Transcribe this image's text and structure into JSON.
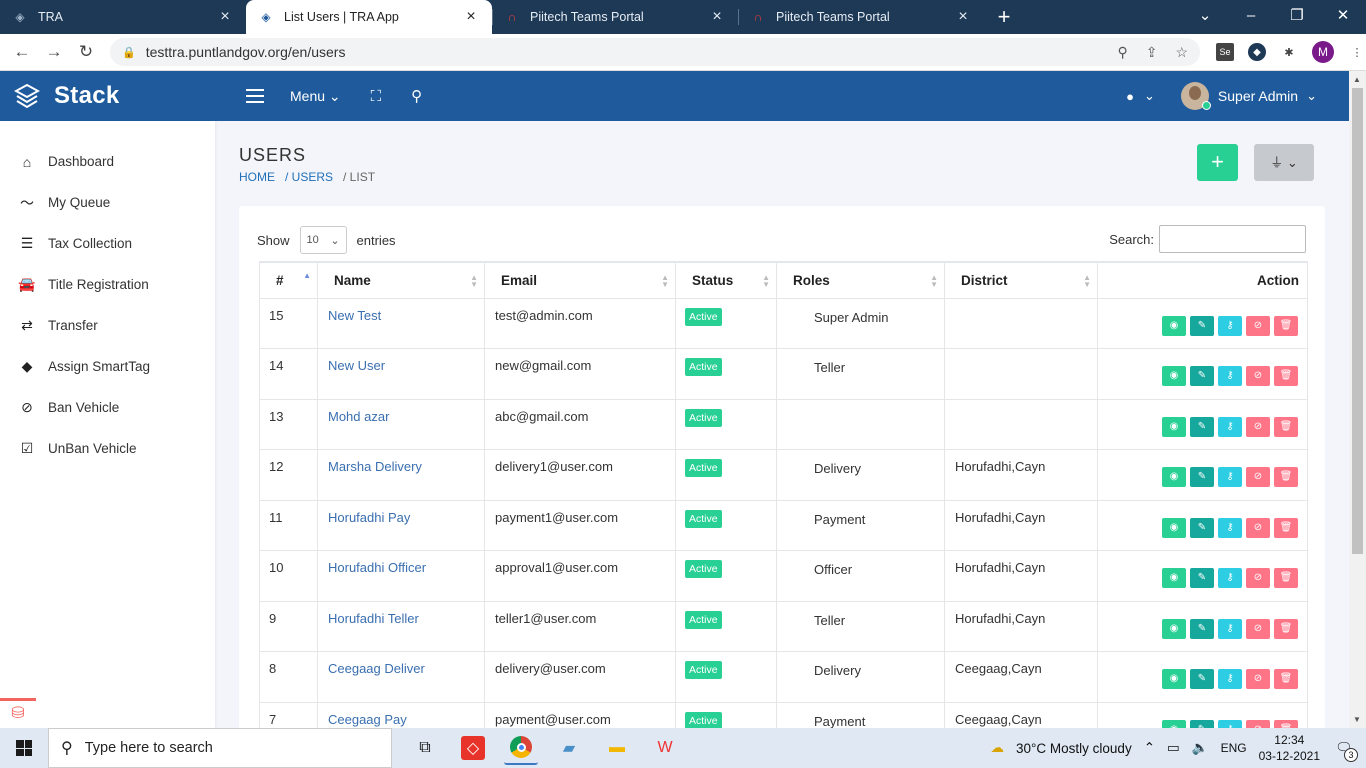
{
  "browser": {
    "tabs": [
      {
        "title": "TRA",
        "active": false,
        "icon": "layers-icon"
      },
      {
        "title": "List Users | TRA App",
        "active": true,
        "icon": "layers-icon"
      },
      {
        "title": "Piitech Teams Portal",
        "active": false,
        "icon": "headset-icon"
      },
      {
        "title": "Piitech Teams Portal",
        "active": false,
        "icon": "headset-icon"
      }
    ],
    "url": "testtra.puntlandgov.org/en/users",
    "profile_initial": "M",
    "ext_se": "Se"
  },
  "header": {
    "brand": "Stack",
    "menu_label": "Menu",
    "user_name": "Super Admin"
  },
  "sidebar": {
    "items": [
      {
        "label": "Dashboard",
        "icon": "home-icon"
      },
      {
        "label": "My Queue",
        "icon": "trend-icon"
      },
      {
        "label": "Tax Collection",
        "icon": "list-icon"
      },
      {
        "label": "Title Registration",
        "icon": "car-icon"
      },
      {
        "label": "Transfer",
        "icon": "exchange-icon"
      },
      {
        "label": "Assign SmartTag",
        "icon": "tags-icon"
      },
      {
        "label": "Ban Vehicle",
        "icon": "ban-icon"
      },
      {
        "label": "UnBan Vehicle",
        "icon": "check-square-icon"
      }
    ]
  },
  "page": {
    "title": "USERS",
    "breadcrumb": [
      "HOME",
      "/ USERS",
      "/ LIST"
    ]
  },
  "table": {
    "show_label": "Show",
    "page_size": "10",
    "entries_label": "entries",
    "search_label": "Search:",
    "columns": [
      "#",
      "Name",
      "Email",
      "Status",
      "Roles",
      "District",
      "Action"
    ],
    "rows": [
      {
        "id": "15",
        "name": "New Test",
        "email": "test@admin.com",
        "status": "Active",
        "role": "Super Admin",
        "district": ""
      },
      {
        "id": "14",
        "name": "New User",
        "email": "new@gmail.com",
        "status": "Active",
        "role": "Teller",
        "district": ""
      },
      {
        "id": "13",
        "name": "Mohd azar",
        "email": "abc@gmail.com",
        "status": "Active",
        "role": "",
        "district": ""
      },
      {
        "id": "12",
        "name": "Marsha Delivery",
        "email": "delivery1@user.com",
        "status": "Active",
        "role": "Delivery",
        "district": "Horufadhi,Cayn"
      },
      {
        "id": "11",
        "name": "Horufadhi Pay",
        "email": "payment1@user.com",
        "status": "Active",
        "role": "Payment",
        "district": "Horufadhi,Cayn"
      },
      {
        "id": "10",
        "name": "Horufadhi Officer",
        "email": "approval1@user.com",
        "status": "Active",
        "role": "Officer",
        "district": "Horufadhi,Cayn"
      },
      {
        "id": "9",
        "name": "Horufadhi Teller",
        "email": "teller1@user.com",
        "status": "Active",
        "role": "Teller",
        "district": "Horufadhi,Cayn"
      },
      {
        "id": "8",
        "name": "Ceegaag Deliver",
        "email": "delivery@user.com",
        "status": "Active",
        "role": "Delivery",
        "district": "Ceegaag,Cayn"
      },
      {
        "id": "7",
        "name": "Ceegaag Pay",
        "email": "payment@user.com",
        "status": "Active",
        "role": "Payment",
        "district": "Ceegaag,Cayn"
      }
    ]
  },
  "taskbar": {
    "search_placeholder": "Type here to search",
    "weather": "30°C  Mostly cloudy",
    "lang": "ENG",
    "time": "12:34",
    "date": "03-12-2021",
    "notifications": "3"
  },
  "colors": {
    "header": "#1f5b9c",
    "success": "#28d094",
    "teal": "#16a79d",
    "info": "#2dcee3",
    "danger": "#ff7588"
  }
}
